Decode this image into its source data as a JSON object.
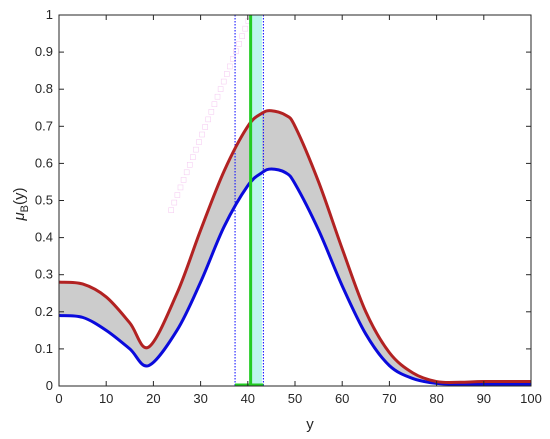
{
  "chart_data": {
    "type": "line",
    "title": "",
    "xlabel": "y",
    "ylabel_main": "μ",
    "ylabel_sub": "B",
    "ylabel_tail": "(y)",
    "xlim": [
      0,
      100
    ],
    "ylim": [
      0,
      1
    ],
    "xticks": [
      0,
      10,
      20,
      30,
      40,
      50,
      60,
      70,
      80,
      90,
      100
    ],
    "yticks": [
      0,
      0.1,
      0.2,
      0.3,
      0.4,
      0.5,
      0.6,
      0.7,
      0.8,
      0.9,
      1
    ],
    "ytick_labels": [
      "0",
      "0.1",
      "0.2",
      "0.3",
      "0.4",
      "0.5",
      "0.6",
      "0.7",
      "0.8",
      "0.9",
      "1"
    ],
    "grid": false,
    "series": [
      {
        "role": "upper",
        "color": "#b22222",
        "x": [
          0,
          5,
          10,
          15,
          19,
          25,
          30,
          35,
          40,
          43,
          45,
          48,
          50,
          55,
          60,
          65,
          70,
          75,
          80,
          85,
          90,
          100
        ],
        "y": [
          0.28,
          0.275,
          0.24,
          0.17,
          0.105,
          0.25,
          0.42,
          0.58,
          0.7,
          0.735,
          0.742,
          0.73,
          0.7,
          0.55,
          0.37,
          0.2,
          0.09,
          0.035,
          0.012,
          0.01,
          0.012,
          0.012
        ]
      },
      {
        "role": "lower",
        "color": "#0a0adc",
        "x": [
          0,
          5,
          10,
          15,
          19,
          25,
          30,
          35,
          40,
          43,
          45,
          48,
          50,
          55,
          60,
          65,
          70,
          75,
          80,
          85,
          90,
          100
        ],
        "y": [
          0.19,
          0.185,
          0.15,
          0.1,
          0.055,
          0.15,
          0.28,
          0.43,
          0.54,
          0.575,
          0.585,
          0.575,
          0.545,
          0.42,
          0.27,
          0.14,
          0.055,
          0.02,
          0.007,
          0.005,
          0.005,
          0.005
        ]
      }
    ],
    "fill_between": {
      "color": "#cccccc"
    },
    "vertical_lines": [
      {
        "x": 37.3,
        "color": "#0000ff",
        "style": "dotted"
      },
      {
        "x": 43.3,
        "color": "#0000ff",
        "style": "dotted"
      },
      {
        "x": 40.6,
        "color": "#22cc22",
        "style": "solid"
      }
    ],
    "band": {
      "x0": 40.8,
      "x1": 43.0,
      "color": "#a6f2e8"
    },
    "green_base": {
      "x0": 37.3,
      "x1": 43.3,
      "color": "#22cc22"
    },
    "staircase": {
      "color": "#ffffff",
      "x_start": 23.5,
      "x_end": 40.5,
      "y_start": 0.47,
      "y_end": 1.0
    }
  }
}
